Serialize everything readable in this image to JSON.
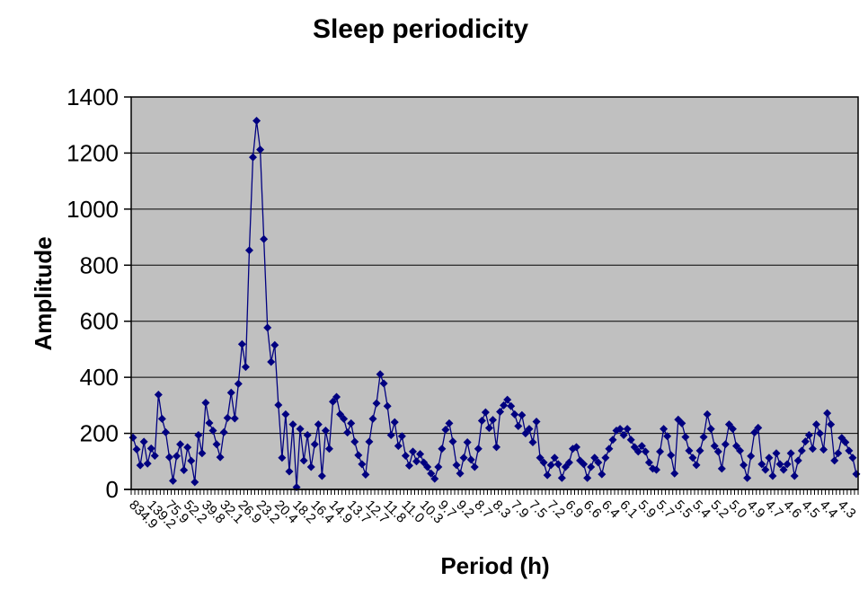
{
  "chart_data": {
    "type": "line",
    "title": "Sleep periodicity",
    "xlabel": "Period (h)",
    "ylabel": "Amplitude",
    "ylim": [
      0,
      1400
    ],
    "ytick_interval": 200,
    "yticks": [
      0,
      200,
      400,
      600,
      800,
      1000,
      1200,
      1400
    ],
    "grid": "horizontal",
    "legend": "none",
    "plot_bg": "#C0C0C0",
    "grid_color": "#000000",
    "x_label_interval": 5,
    "x_tick_labels": [
      "834.9",
      "139.2",
      "75.9",
      "52.2",
      "39.8",
      "32.1",
      "26.9",
      "23.2",
      "20.4",
      "18.2",
      "16.4",
      "14.9",
      "13.7",
      "12.7",
      "11.8",
      "11.0",
      "10.3",
      "9.7",
      "9.2",
      "8.7",
      "8.3",
      "7.9",
      "7.5",
      "7.2",
      "6.9",
      "6.6",
      "6.4",
      "6.1",
      "5.9",
      "5.7",
      "5.5",
      "5.4",
      "5.2",
      "5.0",
      "4.9",
      "4.7",
      "4.6",
      "4.5",
      "4.4",
      "4.3"
    ],
    "series": [
      {
        "name": "amplitude",
        "color": "#000080",
        "marker": "diamond",
        "values": [
          185,
          143,
          86,
          170,
          92,
          146,
          120,
          338,
          252,
          204,
          115,
          31,
          119,
          161,
          69,
          150,
          102,
          26,
          194,
          129,
          309,
          237,
          210,
          161,
          115,
          204,
          255,
          345,
          253,
          377,
          518,
          437,
          853,
          1185,
          1315,
          1212,
          893,
          577,
          455,
          515,
          301,
          113,
          268,
          64,
          232,
          8,
          216,
          103,
          194,
          80,
          161,
          232,
          48,
          210,
          145,
          313,
          330,
          268,
          252,
          203,
          236,
          170,
          122,
          90,
          53,
          170,
          252,
          307,
          411,
          378,
          297,
          194,
          240,
          155,
          190,
          120,
          85,
          135,
          100,
          126,
          96,
          80,
          57,
          38,
          80,
          145,
          213,
          236,
          171,
          87,
          57,
          113,
          168,
          106,
          80,
          145,
          245,
          275,
          219,
          248,
          151,
          277,
          300,
          320,
          297,
          268,
          226,
          265,
          200,
          216,
          168,
          242,
          113,
          96,
          51,
          87,
          113,
          90,
          41,
          80,
          96,
          145,
          151,
          103,
          90,
          41,
          80,
          113,
          96,
          54,
          113,
          145,
          177,
          210,
          216,
          194,
          216,
          177,
          151,
          135,
          155,
          135,
          96,
          74,
          70,
          135,
          216,
          190,
          122,
          57,
          249,
          236,
          187,
          138,
          113,
          87,
          138,
          187,
          268,
          216,
          155,
          135,
          74,
          161,
          232,
          216,
          155,
          138,
          87,
          41,
          119,
          203,
          220,
          90,
          70,
          113,
          48,
          129,
          90,
          70,
          90,
          129,
          48,
          103,
          138,
          171,
          194,
          145,
          232,
          200,
          142,
          272,
          232,
          103,
          129,
          184,
          168,
          138,
          113,
          55
        ]
      }
    ]
  },
  "layout_text": {
    "title": "Sleep periodicity",
    "y_axis_title": "Amplitude",
    "x_axis_title": "Period (h)"
  }
}
